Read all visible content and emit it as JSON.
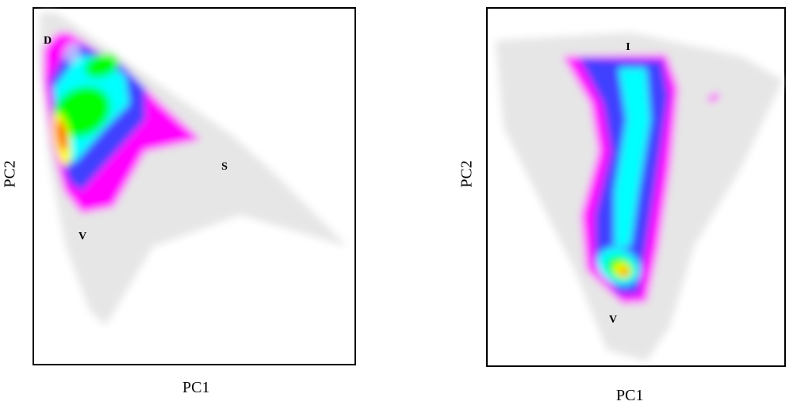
{
  "chart_data": [
    {
      "type": "heatmap",
      "title": "",
      "xlabel": "PC1",
      "ylabel": "PC2",
      "grid": false,
      "legend": "none",
      "annotations": [
        "D",
        "S",
        "V"
      ],
      "description_of_data": "2D density histogram of samples projected on PC1/PC2; triangular dense region with vertices labeled D, S and V",
      "colormap": [
        "#ff00ff",
        "#4040ff",
        "#00ffff",
        "#00ff00",
        "#ffff00",
        "#ff0000"
      ],
      "background_color": "#e6e6e6",
      "density_regions": [
        {
          "label": "triangle-core",
          "level": 0.55
        },
        {
          "label": "left-edge-peak",
          "level": 1.0
        },
        {
          "label": "top-lobe",
          "level": 0.7
        }
      ]
    },
    {
      "type": "heatmap",
      "title": "",
      "xlabel": "PC1",
      "ylabel": "PC2",
      "grid": false,
      "legend": "none",
      "annotations": [
        "I",
        "V"
      ],
      "description_of_data": "2D density histogram of samples projected on PC1/PC2; curved band from I (top) to V (bottom) with peak density near V",
      "colormap": [
        "#ff00ff",
        "#4040ff",
        "#00ffff",
        "#00ff00",
        "#ffff00",
        "#ff0000"
      ],
      "background_color": "#e6e6e6",
      "density_regions": [
        {
          "label": "curved-band",
          "level": 0.4
        },
        {
          "label": "bottom-peak",
          "level": 1.0
        }
      ]
    }
  ]
}
